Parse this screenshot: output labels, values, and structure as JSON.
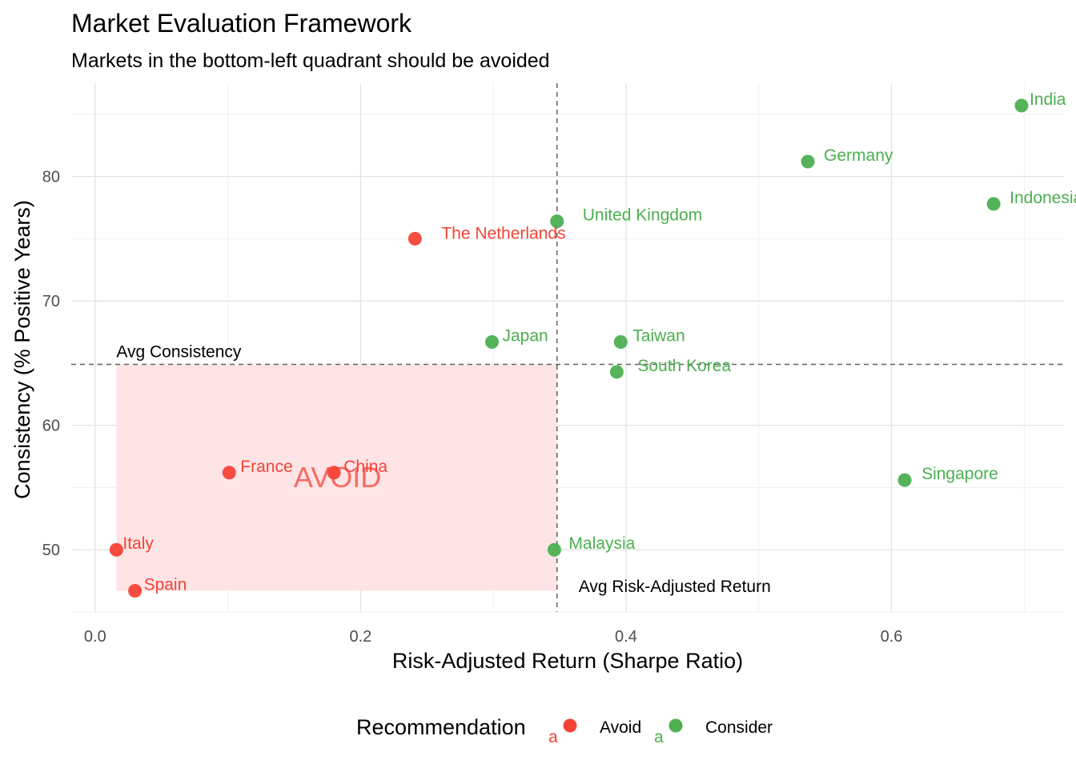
{
  "chart_data": {
    "type": "scatter",
    "title": "Market Evaluation Framework",
    "subtitle": "Markets in the bottom-left quadrant should be avoided",
    "xlabel": "Risk-Adjusted Return (Sharpe Ratio)",
    "ylabel": "Consistency (% Positive Years)",
    "xlim": [
      -0.018,
      0.73
    ],
    "ylim": [
      45.0,
      87.5
    ],
    "x_ticks": [
      0.0,
      0.2,
      0.4,
      0.6
    ],
    "x_tick_labels": [
      "0.0",
      "0.2",
      "0.4",
      "0.6"
    ],
    "y_ticks": [
      50,
      60,
      70,
      80
    ],
    "y_tick_labels": [
      "50",
      "60",
      "70",
      "80"
    ],
    "grid": true,
    "legend_position": "bottom",
    "legend": {
      "title": "Recommendation",
      "key_glyph": "a",
      "entries": [
        {
          "label": "Avoid",
          "color": "#F44336"
        },
        {
          "label": "Consider",
          "color": "#4CAF50"
        }
      ]
    },
    "reference_lines": {
      "avg_sharpe": 0.348,
      "avg_sharpe_label": "Avg Risk-Adjusted Return",
      "avg_consistency": 64.9,
      "avg_consistency_label": "Avg Consistency"
    },
    "avoid_region": {
      "x": [
        0.016,
        0.348
      ],
      "y": [
        46.7,
        64.9
      ],
      "label": "AVOID",
      "fill": "#FFE4E6",
      "text_color": "#F44336"
    },
    "points": [
      {
        "label": "India",
        "x": 0.698,
        "y": 85.7,
        "group": "Consider"
      },
      {
        "label": "Germany",
        "x": 0.537,
        "y": 81.2,
        "group": "Consider"
      },
      {
        "label": "Indonesia",
        "x": 0.677,
        "y": 77.8,
        "group": "Consider"
      },
      {
        "label": "United Kingdom",
        "x": 0.348,
        "y": 76.4,
        "group": "Consider"
      },
      {
        "label": "The Netherlands",
        "x": 0.241,
        "y": 75.0,
        "group": "Avoid"
      },
      {
        "label": "Japan",
        "x": 0.299,
        "y": 66.7,
        "group": "Consider"
      },
      {
        "label": "Taiwan",
        "x": 0.396,
        "y": 66.7,
        "group": "Consider"
      },
      {
        "label": "South Korea",
        "x": 0.393,
        "y": 64.3,
        "group": "Consider"
      },
      {
        "label": "France",
        "x": 0.101,
        "y": 56.2,
        "group": "Avoid"
      },
      {
        "label": "China",
        "x": 0.18,
        "y": 56.2,
        "group": "Avoid"
      },
      {
        "label": "Singapore",
        "x": 0.61,
        "y": 55.6,
        "group": "Consider"
      },
      {
        "label": "Italy",
        "x": 0.016,
        "y": 50.0,
        "group": "Avoid"
      },
      {
        "label": "Malaysia",
        "x": 0.346,
        "y": 50.0,
        "group": "Consider"
      },
      {
        "label": "Spain",
        "x": 0.03,
        "y": 46.7,
        "group": "Avoid"
      }
    ]
  }
}
